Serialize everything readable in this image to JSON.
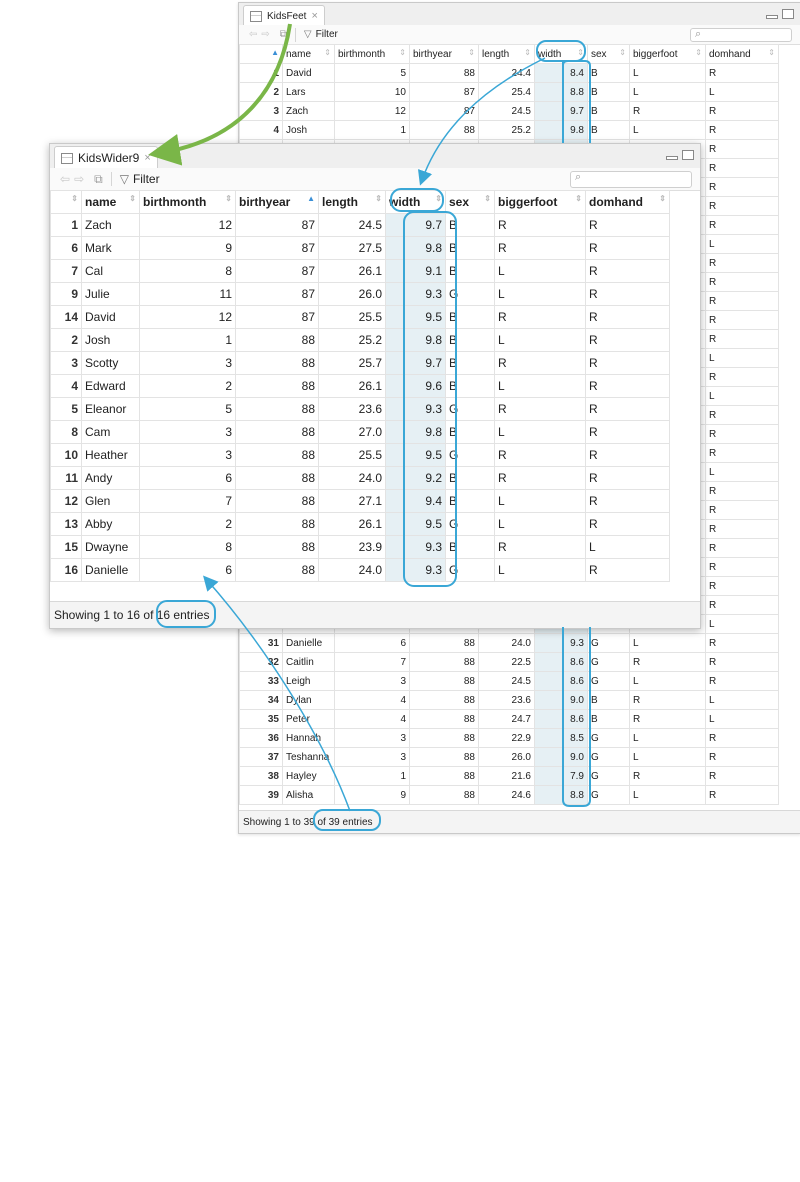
{
  "kidsfeet": {
    "tab_title": "KidsFeet",
    "filter_label": "Filter",
    "footer": "Showing 1 to 39 of 39 entries",
    "columns": [
      "",
      "name",
      "birthmonth",
      "birthyear",
      "length",
      "width",
      "sex",
      "biggerfoot",
      "domhand"
    ],
    "rows": [
      [
        "1",
        "David",
        "5",
        "88",
        "24.4",
        "8.4",
        "B",
        "L",
        "R"
      ],
      [
        "2",
        "Lars",
        "10",
        "87",
        "25.4",
        "8.8",
        "B",
        "L",
        "L"
      ],
      [
        "3",
        "Zach",
        "12",
        "87",
        "24.5",
        "9.7",
        "B",
        "R",
        "R"
      ],
      [
        "4",
        "Josh",
        "1",
        "88",
        "25.2",
        "9.8",
        "B",
        "L",
        "R"
      ],
      [
        "",
        "",
        "",
        "",
        "",
        "",
        "",
        "",
        "R"
      ],
      [
        "",
        "",
        "",
        "",
        "",
        "",
        "",
        "",
        "R"
      ],
      [
        "",
        "",
        "",
        "",
        "",
        "",
        "",
        "",
        "R"
      ],
      [
        "",
        "",
        "",
        "",
        "",
        "",
        "",
        "",
        "R"
      ],
      [
        "",
        "",
        "",
        "",
        "",
        "",
        "",
        "",
        "R"
      ],
      [
        "",
        "",
        "",
        "",
        "",
        "",
        "",
        "",
        "L"
      ],
      [
        "",
        "",
        "",
        "",
        "",
        "",
        "",
        "",
        "R"
      ],
      [
        "",
        "",
        "",
        "",
        "",
        "",
        "",
        "",
        "R"
      ],
      [
        "",
        "",
        "",
        "",
        "",
        "",
        "",
        "",
        "R"
      ],
      [
        "",
        "",
        "",
        "",
        "",
        "",
        "",
        "",
        "R"
      ],
      [
        "",
        "",
        "",
        "",
        "",
        "",
        "",
        "",
        "R"
      ],
      [
        "",
        "",
        "",
        "",
        "",
        "",
        "",
        "",
        "L"
      ],
      [
        "",
        "",
        "",
        "",
        "",
        "",
        "",
        "",
        "R"
      ],
      [
        "",
        "",
        "",
        "",
        "",
        "",
        "",
        "",
        "L"
      ],
      [
        "",
        "",
        "",
        "",
        "",
        "",
        "",
        "",
        "R"
      ],
      [
        "",
        "",
        "",
        "",
        "",
        "",
        "",
        "",
        "R"
      ],
      [
        "",
        "",
        "",
        "",
        "",
        "",
        "",
        "",
        "R"
      ],
      [
        "",
        "",
        "",
        "",
        "",
        "",
        "",
        "",
        "L"
      ],
      [
        "",
        "",
        "",
        "",
        "",
        "",
        "",
        "",
        "R"
      ],
      [
        "",
        "",
        "",
        "",
        "",
        "",
        "",
        "",
        "R"
      ],
      [
        "",
        "",
        "",
        "",
        "",
        "",
        "",
        "",
        "R"
      ],
      [
        "",
        "",
        "",
        "",
        "",
        "",
        "",
        "",
        "R"
      ],
      [
        "",
        "",
        "",
        "",
        "",
        "",
        "",
        "",
        "R"
      ],
      [
        "",
        "",
        "",
        "",
        "",
        "",
        "",
        "",
        "R"
      ],
      [
        "",
        "",
        "",
        "",
        "",
        "",
        "",
        "",
        "R"
      ],
      [
        "",
        "",
        "",
        "",
        "",
        "",
        "",
        "",
        "L"
      ],
      [
        "31",
        "Danielle",
        "6",
        "88",
        "24.0",
        "9.3",
        "G",
        "L",
        "R"
      ],
      [
        "32",
        "Caitlin",
        "7",
        "88",
        "22.5",
        "8.6",
        "G",
        "R",
        "R"
      ],
      [
        "33",
        "Leigh",
        "3",
        "88",
        "24.5",
        "8.6",
        "G",
        "L",
        "R"
      ],
      [
        "34",
        "Dylan",
        "4",
        "88",
        "23.6",
        "9.0",
        "B",
        "R",
        "L"
      ],
      [
        "35",
        "Peter",
        "4",
        "88",
        "24.7",
        "8.6",
        "B",
        "R",
        "L"
      ],
      [
        "36",
        "Hannah",
        "3",
        "88",
        "22.9",
        "8.5",
        "G",
        "L",
        "R"
      ],
      [
        "37",
        "Teshanna",
        "3",
        "88",
        "26.0",
        "9.0",
        "G",
        "L",
        "R"
      ],
      [
        "38",
        "Hayley",
        "1",
        "88",
        "21.6",
        "7.9",
        "G",
        "R",
        "R"
      ],
      [
        "39",
        "Alisha",
        "9",
        "88",
        "24.6",
        "8.8",
        "G",
        "L",
        "R"
      ]
    ]
  },
  "kidswider9": {
    "tab_title": "KidsWider9",
    "filter_label": "Filter",
    "footer": "Showing 1 to 16 of 16 entries",
    "columns": [
      "",
      "name",
      "birthmonth",
      "birthyear",
      "length",
      "width",
      "sex",
      "biggerfoot",
      "domhand"
    ],
    "rows": [
      [
        "1",
        "Zach",
        "12",
        "87",
        "24.5",
        "9.7",
        "B",
        "R",
        "R"
      ],
      [
        "6",
        "Mark",
        "9",
        "87",
        "27.5",
        "9.8",
        "B",
        "R",
        "R"
      ],
      [
        "7",
        "Cal",
        "8",
        "87",
        "26.1",
        "9.1",
        "B",
        "L",
        "R"
      ],
      [
        "9",
        "Julie",
        "11",
        "87",
        "26.0",
        "9.3",
        "G",
        "L",
        "R"
      ],
      [
        "14",
        "David",
        "12",
        "87",
        "25.5",
        "9.5",
        "B",
        "R",
        "R"
      ],
      [
        "2",
        "Josh",
        "1",
        "88",
        "25.2",
        "9.8",
        "B",
        "L",
        "R"
      ],
      [
        "3",
        "Scotty",
        "3",
        "88",
        "25.7",
        "9.7",
        "B",
        "R",
        "R"
      ],
      [
        "4",
        "Edward",
        "2",
        "88",
        "26.1",
        "9.6",
        "B",
        "L",
        "R"
      ],
      [
        "5",
        "Eleanor",
        "5",
        "88",
        "23.6",
        "9.3",
        "G",
        "R",
        "R"
      ],
      [
        "8",
        "Cam",
        "3",
        "88",
        "27.0",
        "9.8",
        "B",
        "L",
        "R"
      ],
      [
        "10",
        "Heather",
        "3",
        "88",
        "25.5",
        "9.5",
        "G",
        "R",
        "R"
      ],
      [
        "11",
        "Andy",
        "6",
        "88",
        "24.0",
        "9.2",
        "B",
        "R",
        "R"
      ],
      [
        "12",
        "Glen",
        "7",
        "88",
        "27.1",
        "9.4",
        "B",
        "L",
        "R"
      ],
      [
        "13",
        "Abby",
        "2",
        "88",
        "26.1",
        "9.5",
        "G",
        "L",
        "R"
      ],
      [
        "15",
        "Dwayne",
        "8",
        "88",
        "23.9",
        "9.3",
        "B",
        "R",
        "L"
      ],
      [
        "16",
        "Danielle",
        "6",
        "88",
        "24.0",
        "9.3",
        "G",
        "L",
        "R"
      ]
    ]
  },
  "colors": {
    "annotation": "#3aa7d6",
    "arrow_green": "#7ab648",
    "highlight": "#e6f0f4"
  }
}
